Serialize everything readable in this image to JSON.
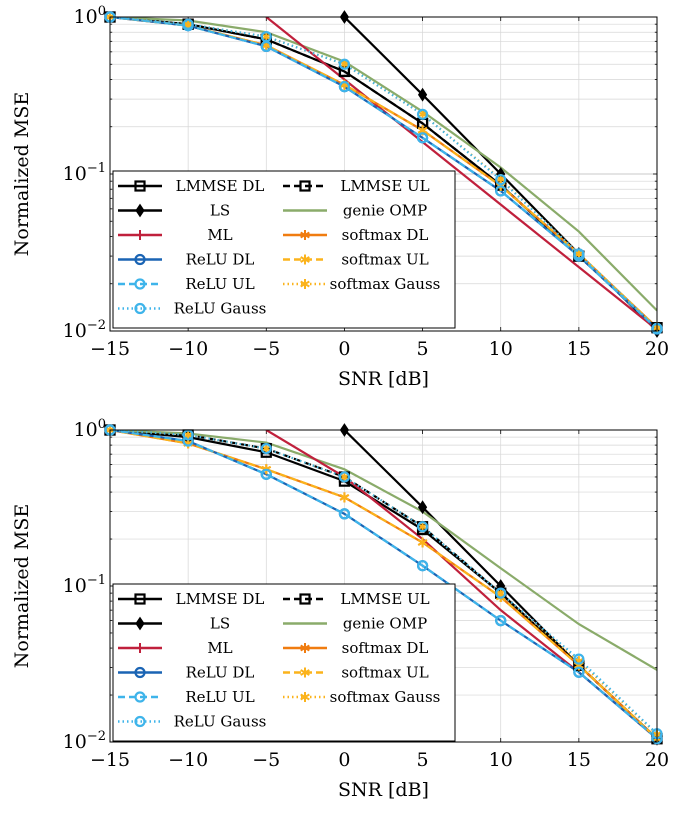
{
  "chart_data": [
    {
      "type": "line",
      "xlabel": "SNR [dB]",
      "ylabel": "Normalized MSE",
      "xlim": [
        -15,
        20
      ],
      "ylim": [
        0.01,
        1
      ],
      "yscale": "log",
      "x_ticks": [
        "−15",
        "−10",
        "−5",
        "0",
        "5",
        "10",
        "15",
        "20"
      ],
      "y_ticks": [
        {
          "base": "10",
          "exp": "0"
        },
        {
          "base": "10",
          "exp": "−1"
        },
        {
          "base": "10",
          "exp": "−2"
        }
      ],
      "grid": true,
      "legend_placement": "bottom-left",
      "x": [
        -15,
        -10,
        -5,
        0,
        5,
        10,
        15,
        20
      ],
      "series": [
        {
          "name": "LMMSE DL",
          "color": "#000000",
          "dash": "solid",
          "marker": "square",
          "values": [
            1.0,
            0.9,
            0.72,
            0.45,
            0.21,
            0.085,
            0.03,
            0.0105
          ]
        },
        {
          "name": "LMMSE UL",
          "color": "#000000",
          "dash": "dashed",
          "marker": "square",
          "values": [
            1.0,
            0.9,
            0.72,
            0.45,
            0.21,
            0.085,
            0.03,
            0.0105
          ]
        },
        {
          "name": "LS",
          "color": "#000000",
          "dash": "solid",
          "marker": "diamond",
          "values": [
            null,
            null,
            null,
            1.0,
            0.32,
            0.1,
            0.031,
            0.01
          ]
        },
        {
          "name": "genie OMP",
          "color": "#8aab6a",
          "dash": "solid",
          "marker": "none",
          "values": [
            1.0,
            0.95,
            0.8,
            0.52,
            0.25,
            0.11,
            0.043,
            0.0135
          ]
        },
        {
          "name": "ML",
          "color": "#c0203c",
          "dash": "solid",
          "marker": "plus",
          "values": [
            null,
            null,
            1.0,
            null,
            null,
            null,
            null,
            0.0102
          ]
        },
        {
          "name": "softmax DL",
          "color": "#f07c10",
          "dash": "solid",
          "marker": "star",
          "values": [
            1.0,
            0.88,
            0.66,
            0.37,
            0.19,
            0.084,
            0.031,
            0.0105
          ]
        },
        {
          "name": "ReLU DL",
          "color": "#1a64b4",
          "dash": "solid",
          "marker": "circle",
          "values": [
            1.0,
            0.88,
            0.65,
            0.36,
            0.17,
            0.078,
            0.03,
            0.0103
          ]
        },
        {
          "name": "softmax UL",
          "color": "#fbb31c",
          "dash": "dashed",
          "marker": "star",
          "values": [
            1.0,
            0.88,
            0.66,
            0.37,
            0.19,
            0.084,
            0.031,
            0.0105
          ]
        },
        {
          "name": "ReLU UL",
          "color": "#3eb4ea",
          "dash": "dashed",
          "marker": "circle",
          "values": [
            1.0,
            0.88,
            0.65,
            0.36,
            0.17,
            0.078,
            0.03,
            0.0103
          ]
        },
        {
          "name": "softmax Gauss",
          "color": "#fbb31c",
          "dash": "dotted",
          "marker": "star",
          "values": [
            1.0,
            0.9,
            0.75,
            0.5,
            0.24,
            0.093,
            0.031,
            0.0105
          ]
        },
        {
          "name": "ReLU Gauss",
          "color": "#3eb4ea",
          "dash": "dotted",
          "marker": "circle",
          "values": [
            1.0,
            0.9,
            0.75,
            0.5,
            0.24,
            0.092,
            0.031,
            0.0104
          ]
        }
      ]
    },
    {
      "type": "line",
      "xlabel": "SNR [dB]",
      "ylabel": "Normalized MSE",
      "xlim": [
        -15,
        20
      ],
      "ylim": [
        0.01,
        1
      ],
      "yscale": "log",
      "x_ticks": [
        "−15",
        "−10",
        "−5",
        "0",
        "5",
        "10",
        "15",
        "20"
      ],
      "y_ticks": [
        {
          "base": "10",
          "exp": "0"
        },
        {
          "base": "10",
          "exp": "−1"
        },
        {
          "base": "10",
          "exp": "−2"
        }
      ],
      "grid": true,
      "legend_placement": "bottom-left",
      "x": [
        -15,
        -10,
        -5,
        0,
        5,
        10,
        15,
        20
      ],
      "series": [
        {
          "name": "LMMSE DL",
          "color": "#000000",
          "dash": "solid",
          "marker": "square",
          "values": [
            1.0,
            0.9,
            0.72,
            0.47,
            0.23,
            0.09,
            0.031,
            0.0105
          ]
        },
        {
          "name": "LMMSE UL",
          "color": "#000000",
          "dash": "dashed",
          "marker": "square",
          "values": [
            1.0,
            0.93,
            0.76,
            0.5,
            0.24,
            0.09,
            0.031,
            0.0105
          ]
        },
        {
          "name": "LS",
          "color": "#000000",
          "dash": "solid",
          "marker": "diamond",
          "values": [
            null,
            null,
            null,
            1.0,
            0.32,
            0.1,
            0.031,
            0.0105
          ]
        },
        {
          "name": "genie OMP",
          "color": "#8aab6a",
          "dash": "solid",
          "marker": "none",
          "values": [
            1.0,
            0.95,
            0.83,
            0.56,
            0.3,
            0.13,
            0.057,
            0.029
          ]
        },
        {
          "name": "ML",
          "color": "#c0203c",
          "dash": "solid",
          "marker": "plus",
          "values": [
            null,
            null,
            1.0,
            0.5,
            0.2,
            0.07,
            0.028,
            0.0105
          ]
        },
        {
          "name": "softmax DL",
          "color": "#f07c10",
          "dash": "solid",
          "marker": "star",
          "values": [
            1.0,
            0.82,
            0.56,
            0.37,
            0.19,
            0.085,
            0.031,
            0.0105
          ]
        },
        {
          "name": "ReLU DL",
          "color": "#1a64b4",
          "dash": "solid",
          "marker": "circle",
          "values": [
            1.0,
            0.85,
            0.52,
            0.29,
            0.135,
            0.06,
            0.028,
            0.0105
          ]
        },
        {
          "name": "softmax UL",
          "color": "#fbb31c",
          "dash": "dashed",
          "marker": "star",
          "values": [
            1.0,
            0.82,
            0.56,
            0.37,
            0.19,
            0.085,
            0.031,
            0.0105
          ]
        },
        {
          "name": "ReLU UL",
          "color": "#3eb4ea",
          "dash": "dashed",
          "marker": "circle",
          "values": [
            1.0,
            0.85,
            0.52,
            0.29,
            0.135,
            0.06,
            0.028,
            0.0105
          ]
        },
        {
          "name": "softmax Gauss",
          "color": "#fbb31c",
          "dash": "dotted",
          "marker": "star",
          "values": [
            1.0,
            0.93,
            0.76,
            0.5,
            0.24,
            0.09,
            0.033,
            0.0112
          ]
        },
        {
          "name": "ReLU Gauss",
          "color": "#3eb4ea",
          "dash": "dotted",
          "marker": "circle",
          "values": [
            1.0,
            0.93,
            0.76,
            0.5,
            0.24,
            0.09,
            0.034,
            0.0113
          ]
        }
      ]
    }
  ]
}
